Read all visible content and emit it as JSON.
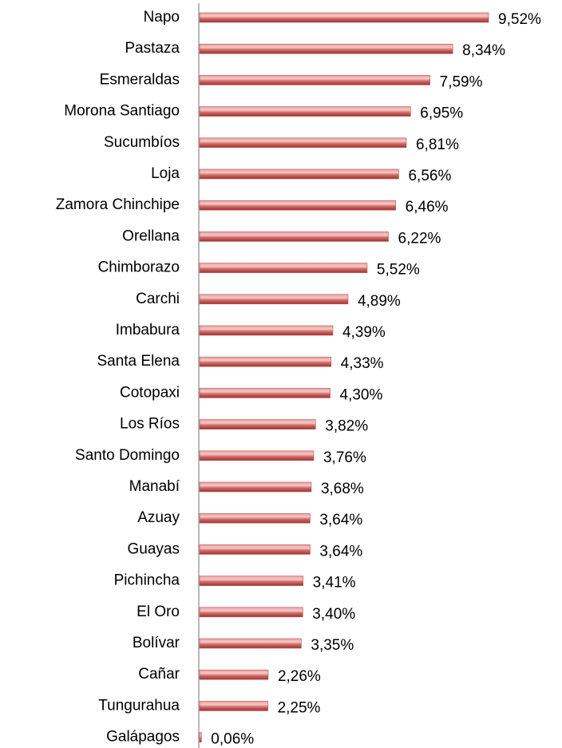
{
  "chart_data": {
    "type": "bar",
    "orientation": "horizontal",
    "color": "#c0504d",
    "categories": [
      "Napo",
      "Pastaza",
      "Esmeraldas",
      "Morona Santiago",
      "Sucumbíos",
      "Loja",
      "Zamora Chinchipe",
      "Orellana",
      "Chimborazo",
      "Carchi",
      "Imbabura",
      "Santa Elena",
      "Cotopaxi",
      "Los Ríos",
      "Santo Domingo",
      "Manabí",
      "Azuay",
      "Guayas",
      "Pichincha",
      "El Oro",
      "Bolívar",
      "Cañar",
      "Tungurahua",
      "Galápagos"
    ],
    "values": [
      9.52,
      8.34,
      7.59,
      6.95,
      6.81,
      6.56,
      6.46,
      6.22,
      5.52,
      4.89,
      4.39,
      4.33,
      4.3,
      3.82,
      3.76,
      3.68,
      3.64,
      3.64,
      3.41,
      3.4,
      3.35,
      2.26,
      2.25,
      0.06
    ],
    "value_labels": [
      "9,52%",
      "8,34%",
      "7,59%",
      "6,95%",
      "6,81%",
      "6,56%",
      "6,46%",
      "6,22%",
      "5,52%",
      "4,89%",
      "4,39%",
      "4,33%",
      "4,30%",
      "3,82%",
      "3,76%",
      "3,68%",
      "3,64%",
      "3,64%",
      "3,41%",
      "3,40%",
      "3,35%",
      "2,26%",
      "2,25%",
      "0,06%"
    ]
  }
}
